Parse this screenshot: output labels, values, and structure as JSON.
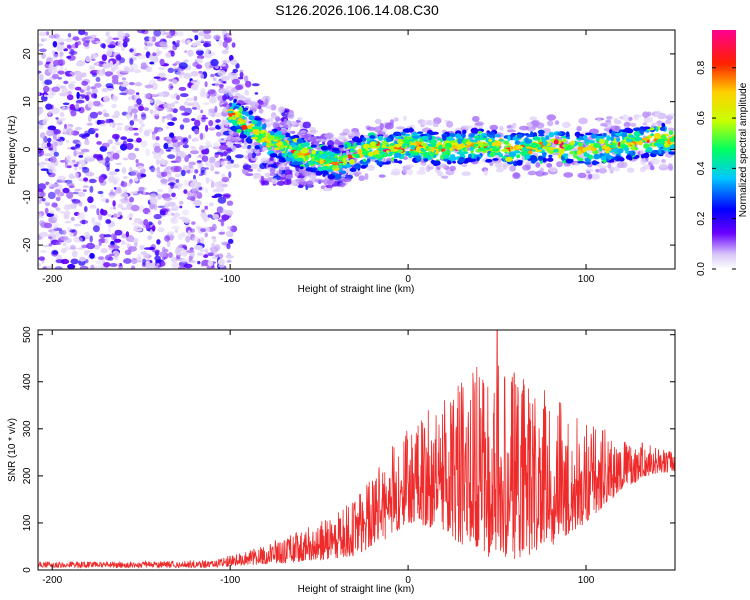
{
  "title": "S126.2026.106.14.08.C30",
  "chart_data": [
    {
      "type": "heatmap",
      "xlabel": "Height of straight line (km)",
      "ylabel": "Frequency (Hz)",
      "xlim": [
        -208,
        150
      ],
      "ylim": [
        -25,
        25
      ],
      "xticks": [
        -200,
        -100,
        0,
        100
      ],
      "yticks": [
        -20,
        -10,
        0,
        10,
        20
      ],
      "colorbar": {
        "label": "Normalized spectral amplitude",
        "range": [
          0.0,
          0.95
        ],
        "ticks": [
          0.0,
          0.2,
          0.4,
          0.6,
          0.8
        ]
      },
      "ridge": {
        "description_x": [
          -100,
          -80,
          -65,
          -50,
          -40,
          -30,
          -20,
          -10,
          0,
          20,
          40,
          60,
          80,
          100,
          120,
          140,
          150
        ],
        "frequency": [
          8,
          2,
          0,
          -2,
          -3,
          -1,
          0,
          0,
          1,
          0,
          1,
          0,
          1,
          0,
          1,
          2,
          2
        ]
      }
    },
    {
      "type": "line",
      "xlabel": "Height of straight line (km)",
      "ylabel": "SNR (10 * v/v)",
      "xlim": [
        -208,
        150
      ],
      "ylim": [
        0,
        510
      ],
      "xticks": [
        -200,
        -100,
        0,
        100
      ],
      "yticks": [
        0,
        100,
        200,
        300,
        400,
        500
      ],
      "color": "#ee2a2a",
      "envelope": {
        "x": [
          -208,
          -150,
          -110,
          -90,
          -70,
          -50,
          -30,
          -10,
          0,
          20,
          40,
          60,
          80,
          100,
          120,
          135,
          150
        ],
        "low": [
          5,
          5,
          5,
          10,
          15,
          20,
          30,
          70,
          100,
          80,
          30,
          20,
          50,
          100,
          170,
          200,
          210
        ],
        "high": [
          18,
          18,
          22,
          40,
          70,
          100,
          150,
          260,
          300,
          370,
          440,
          430,
          380,
          320,
          280,
          270,
          250
        ]
      },
      "peak": {
        "x": 50,
        "value": 510
      }
    }
  ]
}
